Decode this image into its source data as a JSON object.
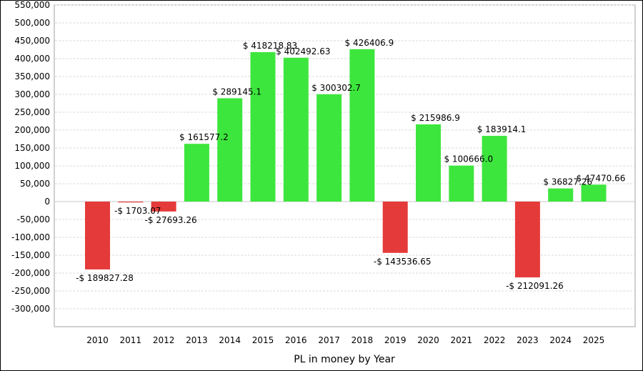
{
  "chart_data": {
    "type": "bar",
    "title": "",
    "xlabel": "PL in money by Year",
    "ylabel": "",
    "ylim": [
      -350000,
      550000
    ],
    "y_ticks": [
      550000,
      500000,
      450000,
      400000,
      350000,
      300000,
      250000,
      200000,
      150000,
      100000,
      50000,
      0,
      -50000,
      -100000,
      -150000,
      -200000,
      -250000,
      -300000
    ],
    "y_tick_labels": [
      "550,000",
      "500,000",
      "450,000",
      "400,000",
      "350,000",
      "300,000",
      "250,000",
      "200,000",
      "150,000",
      "100,000",
      "50,000",
      "0",
      "-50,000",
      "-100,000",
      "-150,000",
      "-200,000",
      "-250,000",
      "-300,000"
    ],
    "grid": true,
    "legend": "none",
    "categories": [
      "2010",
      "2011",
      "2012",
      "2013",
      "2014",
      "2015",
      "2016",
      "2017",
      "2018",
      "2019",
      "2020",
      "2021",
      "2022",
      "2023",
      "2024",
      "2025"
    ],
    "values": [
      -189827.28,
      -1703.07,
      -27693.26,
      161577.2,
      289145.1,
      418218.83,
      402492.63,
      300302.7,
      426406.9,
      -143536.65,
      215986.9,
      100666.0,
      183914.1,
      -212091.26,
      36827.26,
      47470.66
    ],
    "value_labels": [
      "-$ 189827.28",
      "-$ 1703.07",
      "-$ 27693.26",
      "$ 161577.2",
      "$ 289145.1",
      "$ 418218.83",
      "$ 402492.63",
      "$ 300302.7",
      "$ 426406.9",
      "-$ 143536.65",
      "$ 215986.9",
      "$ 100666.0",
      "$ 183914.1",
      "-$ 212091.26",
      "$ 36827.26",
      "$ 47470.66"
    ],
    "colors": {
      "positive": "#3de63d",
      "negative": "#e53a3a",
      "grid": "#d9d9d9",
      "axis": "#888888"
    }
  }
}
